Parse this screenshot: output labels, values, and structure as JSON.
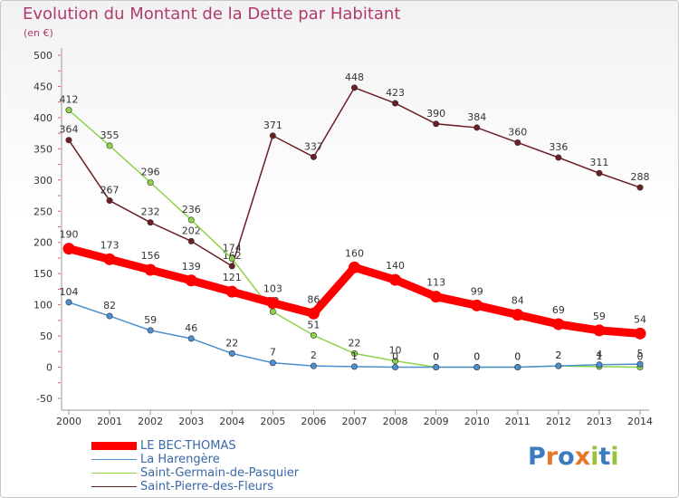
{
  "title": "Evolution du Montant de la Dette par Habitant",
  "unit": "(en €)",
  "logo": {
    "letters": [
      "P",
      "r",
      "o",
      "x",
      "i",
      "t",
      "i"
    ],
    "colors": [
      "#3b7bbf",
      "#e8762a",
      "#3b7bbf",
      "#e8762a",
      "#9ac23c",
      "#3b7bbf",
      "#9ac23c"
    ]
  },
  "chart_data": {
    "type": "line",
    "title": "Evolution du Montant de la Dette par Habitant",
    "ylabel": "(en €)",
    "ylim": [
      -50,
      500
    ],
    "yticks": [
      -50,
      0,
      50,
      100,
      150,
      200,
      250,
      300,
      350,
      400,
      450,
      500
    ],
    "x": [
      2000,
      2001,
      2002,
      2003,
      2004,
      2005,
      2006,
      2007,
      2008,
      2009,
      2010,
      2011,
      2012,
      2013,
      2014
    ],
    "grid": false,
    "legend_position": "bottom-left",
    "series": [
      {
        "name": "Saint-Pierre-des-Fleurs",
        "color": "#6b1f24",
        "values": [
          364,
          267,
          232,
          202,
          162,
          371,
          337,
          448,
          423,
          390,
          384,
          360,
          336,
          311,
          288
        ],
        "labels": [
          "364",
          "267",
          "232",
          "202",
          "162",
          "371",
          "337",
          "448",
          "423",
          "390",
          "384",
          "360",
          "336",
          "311",
          "288"
        ]
      },
      {
        "name": "Saint-Germain-de-Pasquier",
        "color": "#8ed44a",
        "values": [
          412,
          355,
          296,
          236,
          174,
          89,
          51,
          22,
          10,
          0,
          0,
          0,
          2,
          1,
          0
        ],
        "labels": [
          "412",
          "355",
          "296",
          "236",
          "174",
          "89",
          "51",
          "22",
          "10",
          "0",
          "0",
          "0",
          "2",
          "1",
          "0"
        ]
      },
      {
        "name": "La Harengère",
        "color": "#4a90d0",
        "values": [
          104,
          82,
          59,
          46,
          22,
          7,
          2,
          1,
          0,
          0,
          0,
          0,
          2,
          4,
          5
        ],
        "labels": [
          "104",
          "82",
          "59",
          "46",
          "22",
          "7",
          "2",
          "1",
          "0",
          "0",
          "0",
          "0",
          "2",
          "4",
          "5"
        ]
      },
      {
        "name": "LE BEC-THOMAS",
        "color": "#ff0000",
        "values": [
          190,
          173,
          156,
          139,
          121,
          103,
          86,
          160,
          140,
          113,
          99,
          84,
          69,
          59,
          54
        ],
        "labels": [
          "190",
          "173",
          "156",
          "139",
          "121",
          "103",
          "86",
          "160",
          "140",
          "113",
          "99",
          "84",
          "69",
          "59",
          "54"
        ]
      }
    ]
  },
  "legend": [
    {
      "name": "LE BEC-THOMAS",
      "color": "#ff0000",
      "width": 9
    },
    {
      "name": "La Harengère",
      "color": "#4a90d0",
      "width": 1.5
    },
    {
      "name": "Saint-Germain-de-Pasquier",
      "color": "#8ed44a",
      "width": 1.5
    },
    {
      "name": "Saint-Pierre-des-Fleurs",
      "color": "#6b1f24",
      "width": 1.5
    }
  ]
}
